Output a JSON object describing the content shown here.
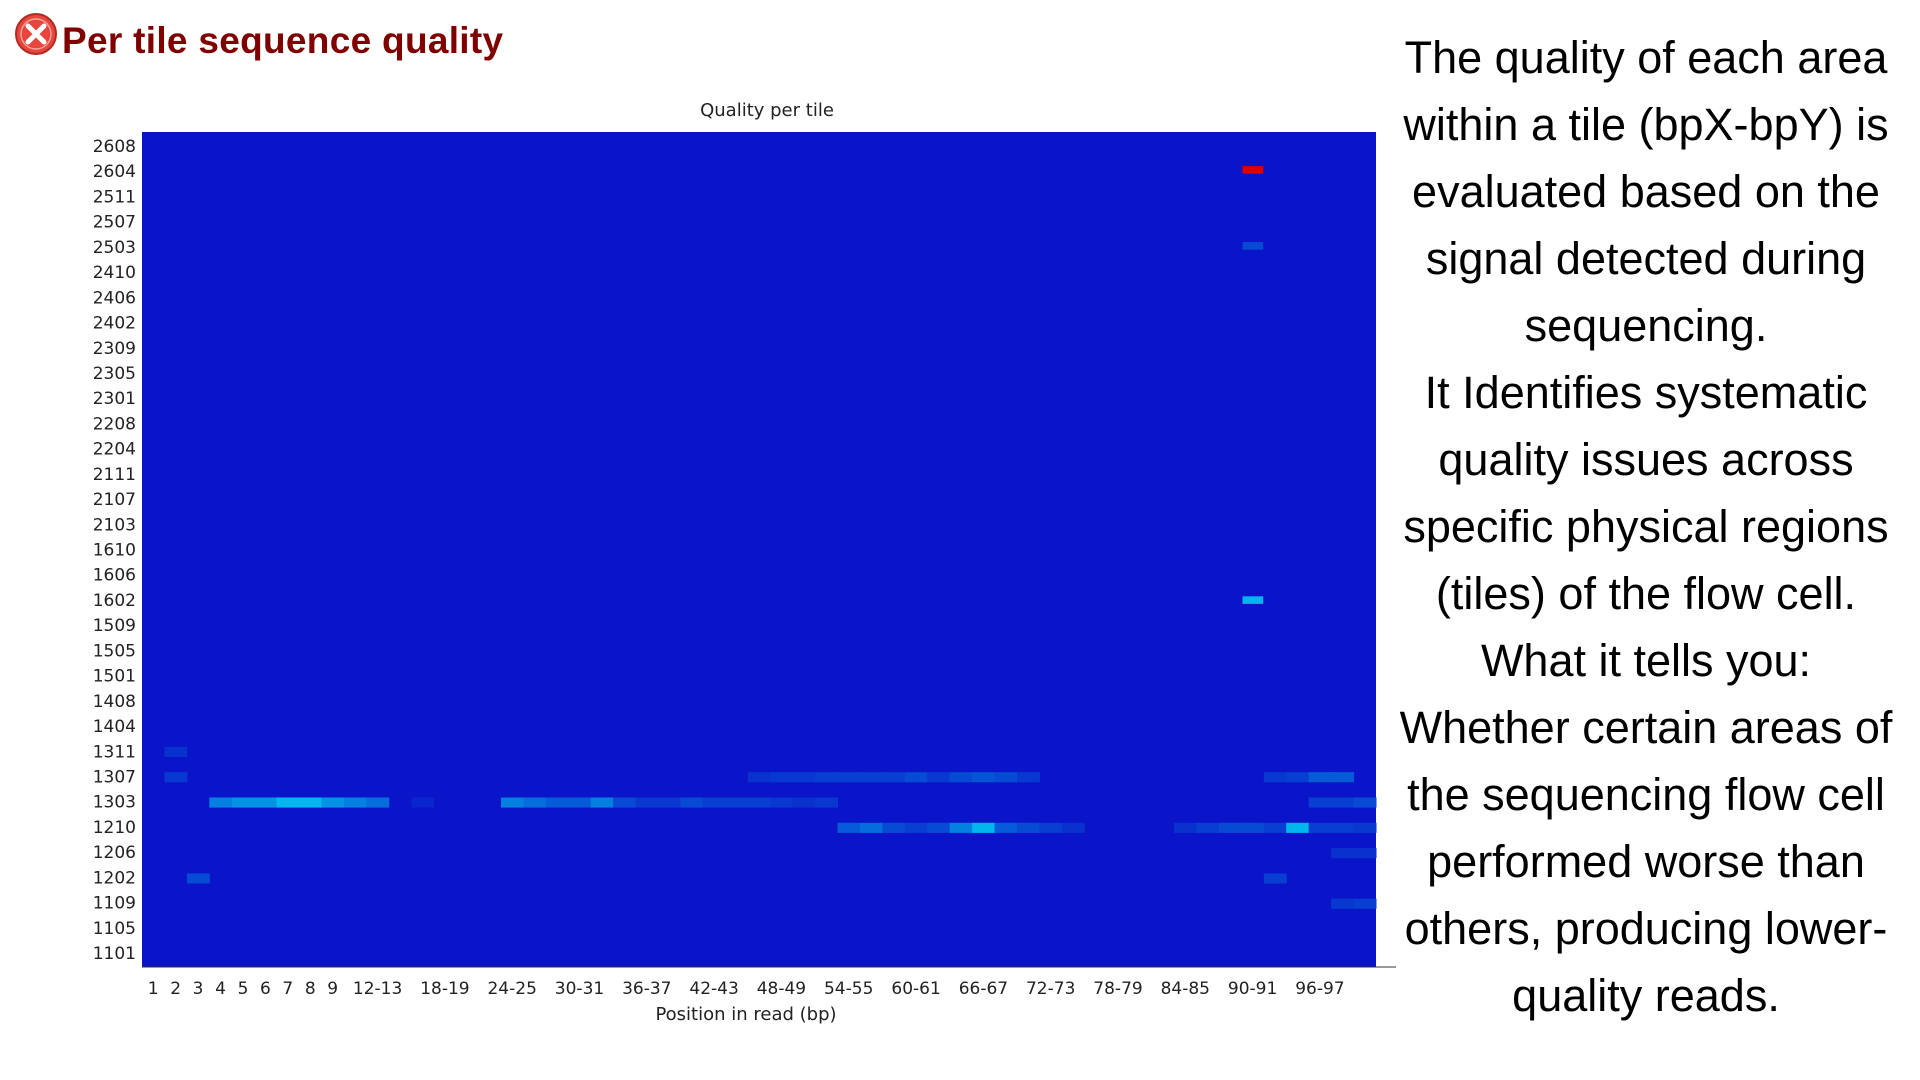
{
  "header": {
    "title": "Per tile sequence quality",
    "status_icon": "fail-x-circle-icon",
    "status_color": "#e8453c"
  },
  "description": {
    "lines": [
      "The quality of each area",
      "within a tile (bpX-bpY) is",
      "evaluated based on the",
      "signal detected during",
      "sequencing.",
      "It Identifies systematic",
      "quality issues across",
      "specific physical regions",
      "(tiles) of the flow cell.",
      "What it tells you:",
      "Whether certain areas of",
      "the sequencing flow cell",
      "performed worse than",
      "others, producing lower-",
      "quality reads."
    ]
  },
  "chart_data": {
    "type": "heatmap",
    "title": "Quality per tile",
    "xlabel": "Position in read (bp)",
    "ylabel": "",
    "x_tick_labels": [
      "1",
      "2",
      "3",
      "4",
      "5",
      "6",
      "7",
      "8",
      "9",
      "12-13",
      "18-19",
      "24-25",
      "30-31",
      "36-37",
      "42-43",
      "48-49",
      "54-55",
      "60-61",
      "66-67",
      "72-73",
      "78-79",
      "84-85",
      "90-91",
      "96-97"
    ],
    "x_columns": [
      "1",
      "2",
      "3",
      "4",
      "5",
      "6",
      "7",
      "8",
      "9",
      "10-11",
      "12-13",
      "14-15",
      "16-17",
      "18-19",
      "20-21",
      "22-23",
      "24-25",
      "26-27",
      "28-29",
      "30-31",
      "32-33",
      "34-35",
      "36-37",
      "38-39",
      "40-41",
      "42-43",
      "44-45",
      "46-47",
      "48-49",
      "50-51",
      "52-53",
      "54-55",
      "56-57",
      "58-59",
      "60-61",
      "62-63",
      "64-65",
      "66-67",
      "68-69",
      "70-71",
      "72-73",
      "74-75",
      "76-77",
      "78-79",
      "80-81",
      "82-83",
      "84-85",
      "86-87",
      "88-89",
      "90-91",
      "92-93",
      "94-95",
      "96-97",
      "98-99",
      "100-101"
    ],
    "y_tiles": [
      "2608",
      "2604",
      "2511",
      "2507",
      "2503",
      "2410",
      "2406",
      "2402",
      "2309",
      "2305",
      "2301",
      "2208",
      "2204",
      "2111",
      "2107",
      "2103",
      "1610",
      "1606",
      "1602",
      "1509",
      "1505",
      "1501",
      "1408",
      "1404",
      "1311",
      "1307",
      "1303",
      "1210",
      "1206",
      "1202",
      "1109",
      "1105",
      "1101"
    ],
    "color_scale": [
      "#0a14c8",
      "#00c8f0",
      "#e00000"
    ],
    "baseline_color": "#0a14c8",
    "cells": [
      {
        "tile": "2604",
        "col": "90-91",
        "value": 1.0
      },
      {
        "tile": "2503",
        "col": "90-91",
        "value": 0.15
      },
      {
        "tile": "1602",
        "col": "90-91",
        "value": 0.45
      },
      {
        "tile": "1303",
        "col": "4",
        "value": 0.3
      },
      {
        "tile": "1303",
        "col": "5",
        "value": 0.35
      },
      {
        "tile": "1303",
        "col": "6",
        "value": 0.35
      },
      {
        "tile": "1303",
        "col": "7",
        "value": 0.45
      },
      {
        "tile": "1303",
        "col": "8",
        "value": 0.45
      },
      {
        "tile": "1303",
        "col": "9",
        "value": 0.35
      },
      {
        "tile": "1303",
        "col": "10-11",
        "value": 0.3
      },
      {
        "tile": "1303",
        "col": "12-13",
        "value": 0.25
      },
      {
        "tile": "1303",
        "col": "16-17",
        "value": 0.05
      },
      {
        "tile": "1303",
        "col": "24-25",
        "value": 0.3
      },
      {
        "tile": "1303",
        "col": "26-27",
        "value": 0.25
      },
      {
        "tile": "1303",
        "col": "28-29",
        "value": 0.2
      },
      {
        "tile": "1303",
        "col": "30-31",
        "value": 0.2
      },
      {
        "tile": "1303",
        "col": "32-33",
        "value": 0.3
      },
      {
        "tile": "1303",
        "col": "34-35",
        "value": 0.15
      },
      {
        "tile": "1303",
        "col": "36-37",
        "value": 0.1
      },
      {
        "tile": "1303",
        "col": "38-39",
        "value": 0.1
      },
      {
        "tile": "1303",
        "col": "40-41",
        "value": 0.15
      },
      {
        "tile": "1303",
        "col": "42-43",
        "value": 0.12
      },
      {
        "tile": "1303",
        "col": "44-45",
        "value": 0.12
      },
      {
        "tile": "1303",
        "col": "46-47",
        "value": 0.12
      },
      {
        "tile": "1303",
        "col": "48-49",
        "value": 0.1
      },
      {
        "tile": "1303",
        "col": "50-51",
        "value": 0.08
      },
      {
        "tile": "1303",
        "col": "52-53",
        "value": 0.1
      },
      {
        "tile": "1303",
        "col": "96-97",
        "value": 0.12
      },
      {
        "tile": "1303",
        "col": "98-99",
        "value": 0.12
      },
      {
        "tile": "1303",
        "col": "100-101",
        "value": 0.15
      },
      {
        "tile": "1307",
        "col": "2",
        "value": 0.1
      },
      {
        "tile": "1307",
        "col": "46-47",
        "value": 0.08
      },
      {
        "tile": "1307",
        "col": "48-49",
        "value": 0.1
      },
      {
        "tile": "1307",
        "col": "50-51",
        "value": 0.1
      },
      {
        "tile": "1307",
        "col": "52-53",
        "value": 0.12
      },
      {
        "tile": "1307",
        "col": "54-55",
        "value": 0.12
      },
      {
        "tile": "1307",
        "col": "56-57",
        "value": 0.12
      },
      {
        "tile": "1307",
        "col": "58-59",
        "value": 0.12
      },
      {
        "tile": "1307",
        "col": "60-61",
        "value": 0.15
      },
      {
        "tile": "1307",
        "col": "62-63",
        "value": 0.1
      },
      {
        "tile": "1307",
        "col": "64-65",
        "value": 0.15
      },
      {
        "tile": "1307",
        "col": "66-67",
        "value": 0.18
      },
      {
        "tile": "1307",
        "col": "68-69",
        "value": 0.15
      },
      {
        "tile": "1307",
        "col": "70-71",
        "value": 0.1
      },
      {
        "tile": "1307",
        "col": "92-93",
        "value": 0.1
      },
      {
        "tile": "1307",
        "col": "94-95",
        "value": 0.12
      },
      {
        "tile": "1307",
        "col": "96-97",
        "value": 0.2
      },
      {
        "tile": "1307",
        "col": "98-99",
        "value": 0.2
      },
      {
        "tile": "1311",
        "col": "2",
        "value": 0.08
      },
      {
        "tile": "1210",
        "col": "54-55",
        "value": 0.2
      },
      {
        "tile": "1210",
        "col": "56-57",
        "value": 0.25
      },
      {
        "tile": "1210",
        "col": "58-59",
        "value": 0.15
      },
      {
        "tile": "1210",
        "col": "60-61",
        "value": 0.12
      },
      {
        "tile": "1210",
        "col": "62-63",
        "value": 0.15
      },
      {
        "tile": "1210",
        "col": "64-65",
        "value": 0.3
      },
      {
        "tile": "1210",
        "col": "66-67",
        "value": 0.45
      },
      {
        "tile": "1210",
        "col": "68-69",
        "value": 0.2
      },
      {
        "tile": "1210",
        "col": "70-71",
        "value": 0.15
      },
      {
        "tile": "1210",
        "col": "72-73",
        "value": 0.12
      },
      {
        "tile": "1210",
        "col": "74-75",
        "value": 0.08
      },
      {
        "tile": "1210",
        "col": "84-85",
        "value": 0.08
      },
      {
        "tile": "1210",
        "col": "86-87",
        "value": 0.12
      },
      {
        "tile": "1210",
        "col": "88-89",
        "value": 0.15
      },
      {
        "tile": "1210",
        "col": "90-91",
        "value": 0.15
      },
      {
        "tile": "1210",
        "col": "92-93",
        "value": 0.12
      },
      {
        "tile": "1210",
        "col": "94-95",
        "value": 0.45
      },
      {
        "tile": "1210",
        "col": "96-97",
        "value": 0.12
      },
      {
        "tile": "1210",
        "col": "98-99",
        "value": 0.12
      },
      {
        "tile": "1210",
        "col": "100-101",
        "value": 0.1
      },
      {
        "tile": "1206",
        "col": "98-99",
        "value": 0.08
      },
      {
        "tile": "1206",
        "col": "100-101",
        "value": 0.08
      },
      {
        "tile": "1202",
        "col": "3",
        "value": 0.15
      },
      {
        "tile": "1202",
        "col": "92-93",
        "value": 0.12
      },
      {
        "tile": "1109",
        "col": "98-99",
        "value": 0.1
      },
      {
        "tile": "1109",
        "col": "100-101",
        "value": 0.12
      }
    ]
  }
}
